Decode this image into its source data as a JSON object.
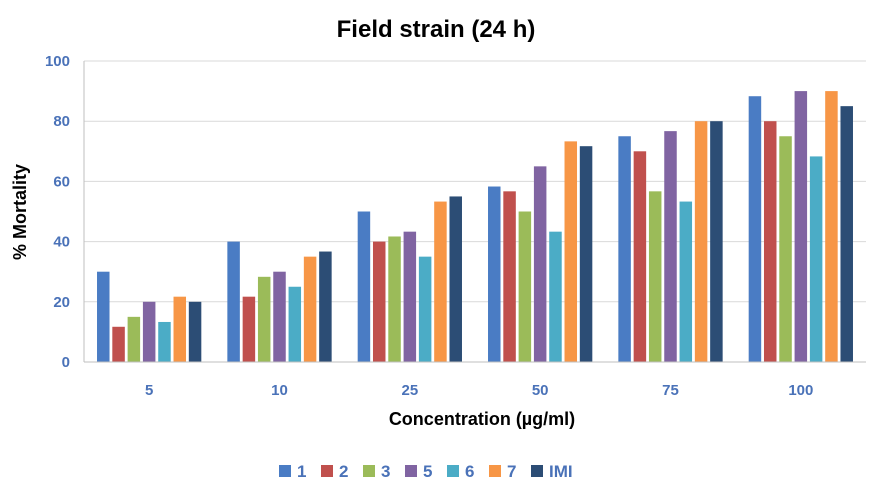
{
  "chart_data": {
    "type": "bar",
    "title": "Field strain (24 h)",
    "xlabel": "Concentration (µg/ml)",
    "ylabel": "% Mortality",
    "ylim": [
      0,
      100
    ],
    "yticks": [
      "0",
      "20",
      "40",
      "60",
      "80",
      "100"
    ],
    "categories": [
      "5",
      "10",
      "25",
      "50",
      "75",
      "100"
    ],
    "grid": true,
    "legend_position": "bottom",
    "series": [
      {
        "name": "1",
        "color": "#4a7cc4",
        "values": [
          30,
          40,
          50,
          58.3,
          75,
          88.3
        ]
      },
      {
        "name": "2",
        "color": "#c0504d",
        "values": [
          11.7,
          21.7,
          40,
          56.7,
          70,
          80
        ]
      },
      {
        "name": "3",
        "color": "#9bbb59",
        "values": [
          15,
          28.3,
          41.7,
          50,
          56.7,
          75
        ]
      },
      {
        "name": "5",
        "color": "#8064a2",
        "values": [
          20,
          30,
          43.3,
          65,
          76.7,
          90
        ]
      },
      {
        "name": "6",
        "color": "#4bacc6",
        "values": [
          13.3,
          25,
          35,
          43.3,
          53.3,
          68.3
        ]
      },
      {
        "name": "7",
        "color": "#f79646",
        "values": [
          21.7,
          35,
          53.3,
          73.3,
          80,
          90
        ]
      },
      {
        "name": "IMI",
        "color": "#2c4d75",
        "values": [
          20,
          36.7,
          55,
          71.7,
          80,
          85
        ]
      }
    ]
  }
}
